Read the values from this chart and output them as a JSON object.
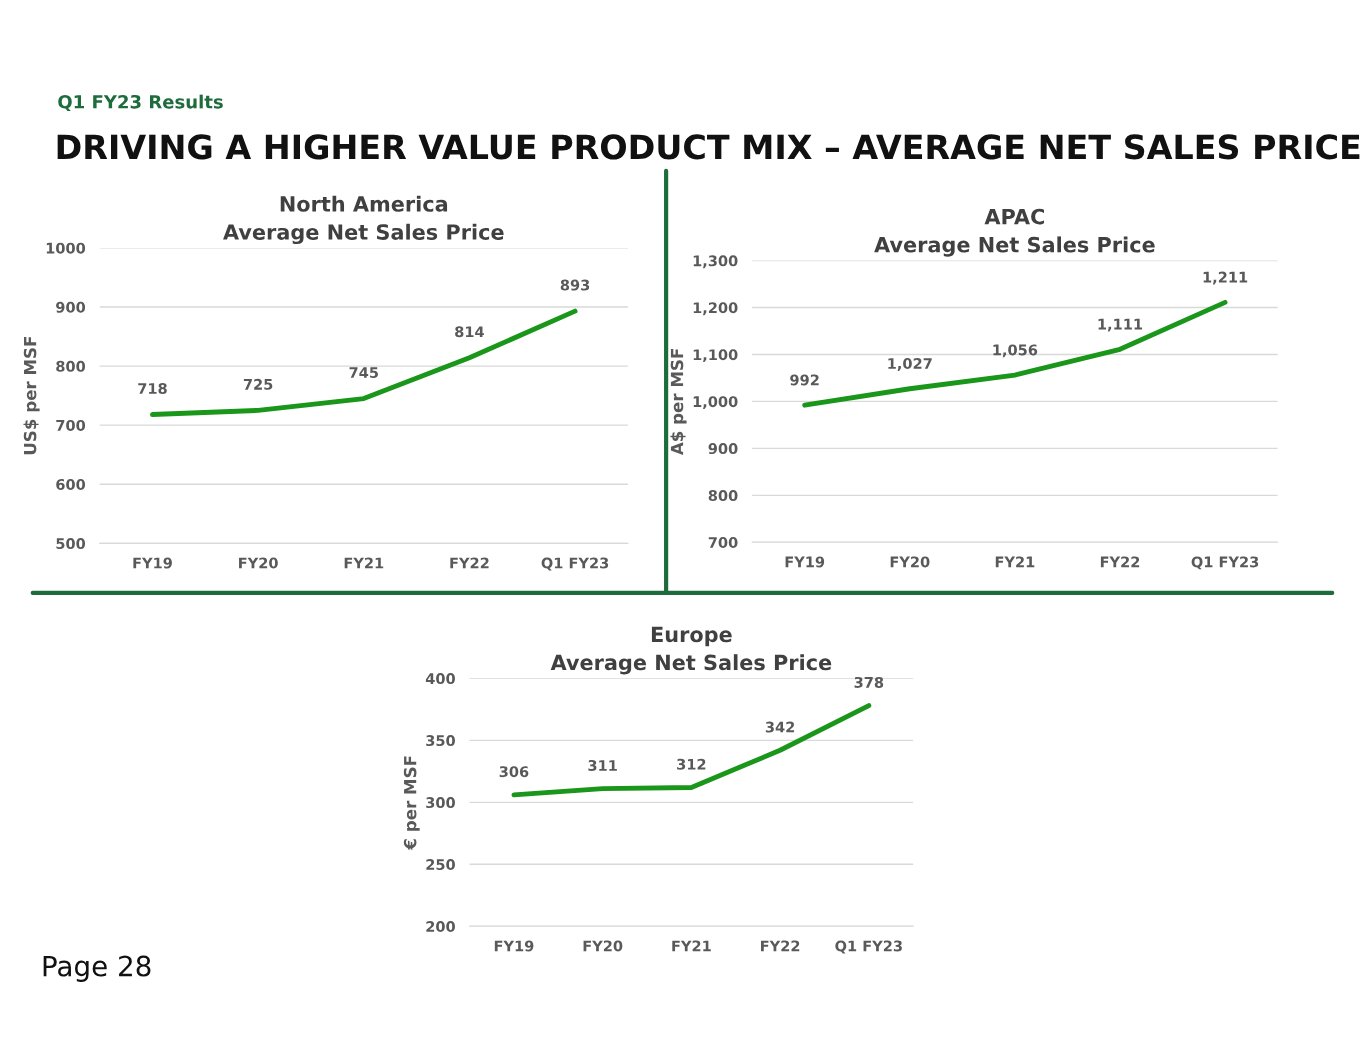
{
  "chart_data": [
    {
      "type": "line",
      "title": "North America\nAverage Net Sales Price",
      "ylabel": "US$ per MSF",
      "categories": [
        "FY19",
        "FY20",
        "FY21",
        "FY22",
        "Q1 FY23"
      ],
      "series": [
        {
          "color": "#1a961a",
          "values": [
            718,
            725,
            745,
            814,
            893
          ]
        }
      ],
      "ylim": [
        500,
        1000
      ],
      "yticks": [
        500,
        600,
        700,
        800,
        900,
        1000
      ],
      "grid": "y",
      "data_labels": true,
      "marker": "none",
      "line_style": "solid",
      "annotations": [
        "Q1 FY23 Results",
        "DRIVING A HIGHER VALUE PRODUCT MIX – AVERAGE NET SALES PRICE",
        "Page 28"
      ]
    },
    {
      "type": "line",
      "title": "APAC\nAverage Net Sales Price",
      "ylabel": "A$ per MSF",
      "categories": [
        "FY19",
        "FY20",
        "FY21",
        "FY22",
        "Q1 FY23"
      ],
      "series": [
        {
          "color": "#1a961a",
          "values": [
            992,
            1027,
            1056,
            1111,
            1211
          ]
        }
      ],
      "ylim": [
        700,
        1300
      ],
      "yticks": [
        700,
        800,
        900,
        {
          "value": 1000,
          "label": "1,000"
        },
        {
          "value": 1100,
          "label": "1,100"
        },
        {
          "value": 1200,
          "label": "1,200"
        },
        {
          "value": 1300,
          "label": "1,300"
        }
      ],
      "grid": "y",
      "marker": "none",
      "line_style": "solid",
      "value_labels": [
        "992",
        "1,027",
        "1,056",
        "1,111",
        "1,211"
      ]
    },
    {
      "type": "line",
      "title": "Europe\nAverage Net Sales Price",
      "ylabel": "€ per MSF",
      "categories": [
        "FY19",
        "FY20",
        "FY21",
        "FY22",
        "Q1 FY23"
      ],
      "series": [
        {
          "color": "#1a961a",
          "values": [
            306,
            311,
            312,
            342,
            378
          ]
        }
      ],
      "ylim": [
        200,
        400
      ],
      "yticks": [
        200,
        250,
        300,
        350,
        400
      ],
      "grid": "y",
      "data_labels": true,
      "marker": "none",
      "line_style": "solid"
    }
  ]
}
